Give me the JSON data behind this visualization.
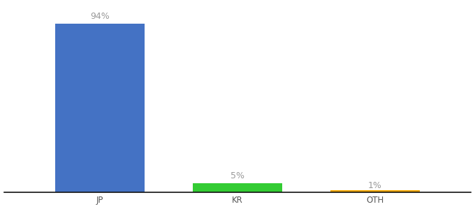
{
  "categories": [
    "JP",
    "KR",
    "OTH"
  ],
  "values": [
    94,
    5,
    1
  ],
  "bar_colors": [
    "#4472c4",
    "#33cc33",
    "#f0a500"
  ],
  "labels": [
    "94%",
    "5%",
    "1%"
  ],
  "background_color": "#ffffff",
  "label_color": "#999999",
  "axis_line_color": "#111111",
  "ylim": [
    0,
    105
  ],
  "bar_width": 0.65,
  "label_fontsize": 9,
  "tick_fontsize": 8.5,
  "tick_color": "#555555",
  "x_positions": [
    1,
    2,
    3
  ],
  "xlim": [
    0.3,
    3.7
  ]
}
